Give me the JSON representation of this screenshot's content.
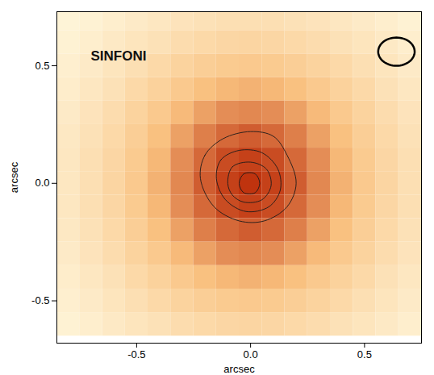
{
  "chart_data": {
    "type": "heatmap",
    "title": "SINFONI",
    "x_label": "arcsec",
    "y_label": "arcsec",
    "xlim": [
      -0.85,
      0.75
    ],
    "ylim": [
      -0.68,
      0.73
    ],
    "xticks": [
      -0.5,
      {
        "value": 0,
        "label": "0.0"
      },
      0.5
    ],
    "yticks": [
      -0.5,
      {
        "value": 0,
        "label": "0.0"
      },
      0.5
    ],
    "grid": false,
    "x": [
      -0.8,
      -0.7,
      -0.6,
      -0.5,
      -0.4,
      -0.3,
      -0.2,
      -0.1,
      0.0,
      0.1,
      0.2,
      0.3,
      0.4,
      0.5,
      0.6,
      0.7
    ],
    "y": [
      0.7,
      0.6,
      0.5,
      0.4,
      0.3,
      0.2,
      0.1,
      0.0,
      -0.1,
      -0.2,
      -0.3,
      -0.4,
      -0.5,
      -0.6
    ],
    "z": [
      [
        0.06,
        0.08,
        0.11,
        0.14,
        0.17,
        0.2,
        0.22,
        0.24,
        0.24,
        0.24,
        0.22,
        0.2,
        0.17,
        0.14,
        0.11,
        0.08
      ],
      [
        0.08,
        0.11,
        0.15,
        0.19,
        0.22,
        0.26,
        0.29,
        0.31,
        0.32,
        0.31,
        0.29,
        0.26,
        0.22,
        0.19,
        0.15,
        0.11
      ],
      [
        0.1,
        0.14,
        0.19,
        0.24,
        0.29,
        0.34,
        0.38,
        0.41,
        0.42,
        0.41,
        0.38,
        0.34,
        0.29,
        0.24,
        0.19,
        0.14
      ],
      [
        0.12,
        0.17,
        0.22,
        0.29,
        0.35,
        0.42,
        0.49,
        0.53,
        0.55,
        0.53,
        0.49,
        0.42,
        0.35,
        0.29,
        0.22,
        0.17
      ],
      [
        0.14,
        0.2,
        0.26,
        0.34,
        0.42,
        0.52,
        0.61,
        0.68,
        0.7,
        0.68,
        0.61,
        0.52,
        0.42,
        0.34,
        0.26,
        0.2
      ],
      [
        0.16,
        0.22,
        0.29,
        0.38,
        0.49,
        0.61,
        0.73,
        0.81,
        0.85,
        0.81,
        0.73,
        0.61,
        0.49,
        0.38,
        0.29,
        0.22
      ],
      [
        0.17,
        0.24,
        0.31,
        0.41,
        0.53,
        0.68,
        0.81,
        0.91,
        0.95,
        0.91,
        0.81,
        0.68,
        0.53,
        0.41,
        0.31,
        0.24
      ],
      [
        0.17,
        0.24,
        0.32,
        0.42,
        0.55,
        0.7,
        0.85,
        0.95,
        1.0,
        0.95,
        0.85,
        0.7,
        0.55,
        0.42,
        0.32,
        0.24
      ],
      [
        0.17,
        0.24,
        0.31,
        0.41,
        0.53,
        0.68,
        0.81,
        0.91,
        0.95,
        0.91,
        0.81,
        0.68,
        0.53,
        0.41,
        0.31,
        0.24
      ],
      [
        0.16,
        0.22,
        0.29,
        0.38,
        0.49,
        0.61,
        0.73,
        0.81,
        0.85,
        0.81,
        0.73,
        0.61,
        0.49,
        0.38,
        0.29,
        0.22
      ],
      [
        0.14,
        0.2,
        0.26,
        0.34,
        0.42,
        0.52,
        0.61,
        0.68,
        0.7,
        0.68,
        0.61,
        0.52,
        0.42,
        0.34,
        0.26,
        0.2
      ],
      [
        0.12,
        0.17,
        0.22,
        0.29,
        0.35,
        0.42,
        0.49,
        0.53,
        0.55,
        0.53,
        0.49,
        0.42,
        0.35,
        0.29,
        0.22,
        0.17
      ],
      [
        0.1,
        0.14,
        0.19,
        0.24,
        0.29,
        0.34,
        0.38,
        0.41,
        0.42,
        0.41,
        0.38,
        0.34,
        0.29,
        0.24,
        0.19,
        0.14
      ],
      [
        0.08,
        0.11,
        0.15,
        0.19,
        0.22,
        0.26,
        0.29,
        0.31,
        0.32,
        0.31,
        0.29,
        0.26,
        0.22,
        0.19,
        0.15,
        0.11
      ]
    ],
    "zlim": [
      0,
      1
    ],
    "contours": [
      [
        [
          -0.22,
          0.02
        ],
        [
          -0.2,
          0.12
        ],
        [
          -0.12,
          0.19
        ],
        [
          0.0,
          0.22
        ],
        [
          0.1,
          0.2
        ],
        [
          0.16,
          0.12
        ],
        [
          0.2,
          0.0
        ],
        [
          0.16,
          -0.1
        ],
        [
          0.06,
          -0.16
        ],
        [
          -0.05,
          -0.16
        ],
        [
          -0.16,
          -0.1
        ]
      ],
      [
        [
          -0.15,
          0.02
        ],
        [
          -0.13,
          0.1
        ],
        [
          -0.05,
          0.14
        ],
        [
          0.05,
          0.13
        ],
        [
          0.12,
          0.06
        ],
        [
          0.13,
          -0.03
        ],
        [
          0.08,
          -0.1
        ],
        [
          -0.02,
          -0.12
        ],
        [
          -0.11,
          -0.07
        ]
      ],
      [
        [
          -0.1,
          0.0
        ],
        [
          -0.08,
          0.07
        ],
        [
          0.0,
          0.09
        ],
        [
          0.07,
          0.06
        ],
        [
          0.09,
          -0.01
        ],
        [
          0.05,
          -0.07
        ],
        [
          -0.03,
          -0.08
        ],
        [
          -0.08,
          -0.05
        ]
      ],
      [
        [
          -0.05,
          0.0
        ],
        [
          -0.03,
          0.04
        ],
        [
          0.02,
          0.04
        ],
        [
          0.04,
          0.0
        ],
        [
          0.02,
          -0.04
        ],
        [
          -0.03,
          -0.04
        ]
      ]
    ],
    "beam": {
      "x": 0.64,
      "y": 0.56,
      "width": 0.16,
      "height": 0.12
    }
  }
}
